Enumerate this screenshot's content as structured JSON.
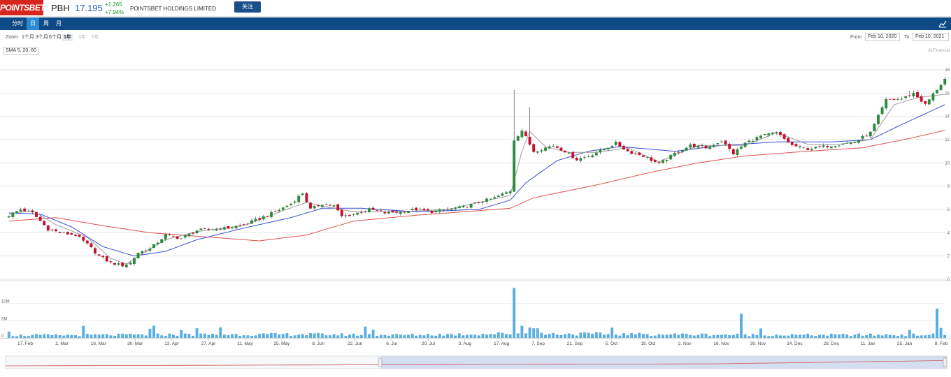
{
  "header": {
    "logo_text": "POINTSBET",
    "symbol": "PBH",
    "price": "17.195",
    "change": "+1.265",
    "change_pct": "+7.94%",
    "company_name": "POINTSBET HOLDINGS LIMITED",
    "follow_label": "关注"
  },
  "period_tabs": [
    {
      "label": "分时",
      "active": false
    },
    {
      "label": "日",
      "active": true
    },
    {
      "label": "周",
      "active": false
    },
    {
      "label": "月",
      "active": false
    }
  ],
  "zoom": {
    "label": "Zoom",
    "options": [
      {
        "label": "1个月",
        "state": "normal"
      },
      {
        "label": "3个月",
        "state": "normal"
      },
      {
        "label": "6个月",
        "state": "normal"
      },
      {
        "label": "1年",
        "state": "active"
      },
      {
        "label": "3年",
        "state": "off"
      },
      {
        "label": "5年",
        "state": "off"
      }
    ]
  },
  "range": {
    "from_label": "From",
    "from": "Feb 10, 2020",
    "to_label": "To",
    "to": "Feb 10, 2021"
  },
  "indicator_label": "SMA 5, 20, 60",
  "credit": "61Financial",
  "colors": {
    "up": "#2e8b3e",
    "down": "#c8102e",
    "sma5": "#9e9e9e",
    "sma20": "#3a4fd1",
    "sma60": "#e05050",
    "volume": "#5aaee0"
  },
  "chart_data": {
    "type": "candlestick",
    "price_axis": {
      "min": 0,
      "max": 18,
      "ticks": [
        "0",
        "2",
        "4",
        "6",
        "8",
        "10",
        "12",
        "14",
        "16",
        "18"
      ]
    },
    "volume_axis": {
      "min": 0,
      "max": 15,
      "ticks": [
        "0",
        "5M",
        "10M"
      ]
    },
    "x_ticks": [
      "17. Feb",
      "2. Mar",
      "16. Mar",
      "30. Mar",
      "13. Apr",
      "27. Apr",
      "11. May",
      "25. May",
      "8. Jun",
      "22. Jun",
      "6. Jul",
      "20. Jul",
      "3. Aug",
      "17. Aug",
      "7. Sep",
      "21. Sep",
      "5. Oct",
      "19. Oct",
      "2. Nov",
      "16. Nov",
      "30. Nov",
      "14. Dec",
      "28. Dec",
      "11. Jan",
      "25. Jan",
      "8. Feb"
    ],
    "close_anchors": [
      [
        0,
        5.5
      ],
      [
        3,
        6.0
      ],
      [
        6,
        5.7
      ],
      [
        10,
        4.3
      ],
      [
        13,
        4.0
      ],
      [
        17,
        3.8
      ],
      [
        20,
        3.0
      ],
      [
        23,
        2.0
      ],
      [
        26,
        1.4
      ],
      [
        29,
        1.2
      ],
      [
        31,
        1.4
      ],
      [
        33,
        2.3
      ],
      [
        36,
        2.6
      ],
      [
        40,
        3.8
      ],
      [
        44,
        3.5
      ],
      [
        48,
        4.2
      ],
      [
        52,
        4.3
      ],
      [
        56,
        4.4
      ],
      [
        60,
        4.7
      ],
      [
        64,
        5.2
      ],
      [
        68,
        5.8
      ],
      [
        72,
        6.5
      ],
      [
        75,
        7.4
      ],
      [
        77,
        6.0
      ],
      [
        80,
        6.5
      ],
      [
        83,
        6.3
      ],
      [
        85,
        5.4
      ],
      [
        88,
        5.6
      ],
      [
        92,
        6.0
      ],
      [
        96,
        5.7
      ],
      [
        100,
        5.8
      ],
      [
        104,
        6.0
      ],
      [
        108,
        5.8
      ],
      [
        112,
        6.0
      ],
      [
        116,
        6.2
      ],
      [
        120,
        6.6
      ],
      [
        124,
        7.0
      ],
      [
        128,
        7.6
      ],
      [
        129,
        12.0
      ],
      [
        131,
        12.8
      ],
      [
        134,
        11.0
      ],
      [
        136,
        11.2
      ],
      [
        139,
        11.5
      ],
      [
        142,
        11.0
      ],
      [
        145,
        10.3
      ],
      [
        148,
        10.6
      ],
      [
        152,
        11.2
      ],
      [
        155,
        11.7
      ],
      [
        158,
        11.0
      ],
      [
        162,
        10.6
      ],
      [
        166,
        9.9
      ],
      [
        170,
        10.8
      ],
      [
        174,
        11.5
      ],
      [
        178,
        11.3
      ],
      [
        182,
        11.9
      ],
      [
        185,
        10.8
      ],
      [
        188,
        11.7
      ],
      [
        192,
        12.3
      ],
      [
        196,
        12.6
      ],
      [
        200,
        11.5
      ],
      [
        204,
        11.2
      ],
      [
        208,
        11.4
      ],
      [
        212,
        11.6
      ],
      [
        216,
        11.8
      ],
      [
        220,
        12.6
      ],
      [
        224,
        15.4
      ],
      [
        228,
        15.5
      ],
      [
        231,
        16.0
      ],
      [
        234,
        15.0
      ],
      [
        236,
        15.9
      ],
      [
        239,
        17.2
      ]
    ],
    "sma5_anchors": [
      [
        0,
        5.6
      ],
      [
        6,
        5.9
      ],
      [
        12,
        4.7
      ],
      [
        20,
        3.6
      ],
      [
        26,
        1.8
      ],
      [
        30,
        1.3
      ],
      [
        34,
        2.2
      ],
      [
        40,
        3.4
      ],
      [
        48,
        4.1
      ],
      [
        60,
        4.6
      ],
      [
        70,
        5.9
      ],
      [
        76,
        6.6
      ],
      [
        80,
        6.3
      ],
      [
        88,
        5.8
      ],
      [
        100,
        5.8
      ],
      [
        112,
        6.0
      ],
      [
        124,
        6.9
      ],
      [
        128,
        7.2
      ],
      [
        131,
        11.0
      ],
      [
        133,
        12.7
      ],
      [
        137,
        11.4
      ],
      [
        143,
        10.9
      ],
      [
        150,
        10.9
      ],
      [
        158,
        11.3
      ],
      [
        166,
        10.1
      ],
      [
        176,
        11.5
      ],
      [
        188,
        11.5
      ],
      [
        196,
        12.6
      ],
      [
        204,
        11.6
      ],
      [
        212,
        11.6
      ],
      [
        220,
        12.0
      ],
      [
        226,
        15.0
      ],
      [
        232,
        15.6
      ],
      [
        239,
        15.9
      ]
    ],
    "sma20_anchors": [
      [
        0,
        5.7
      ],
      [
        8,
        5.6
      ],
      [
        16,
        4.5
      ],
      [
        24,
        2.8
      ],
      [
        32,
        2.0
      ],
      [
        40,
        2.4
      ],
      [
        48,
        3.4
      ],
      [
        60,
        4.4
      ],
      [
        72,
        5.3
      ],
      [
        80,
        6.1
      ],
      [
        90,
        6.1
      ],
      [
        104,
        5.8
      ],
      [
        120,
        6.0
      ],
      [
        128,
        6.8
      ],
      [
        132,
        8.3
      ],
      [
        140,
        10.2
      ],
      [
        148,
        11.0
      ],
      [
        156,
        11.4
      ],
      [
        170,
        11.0
      ],
      [
        182,
        11.5
      ],
      [
        196,
        11.8
      ],
      [
        210,
        11.8
      ],
      [
        220,
        12.0
      ],
      [
        228,
        13.3
      ],
      [
        239,
        15.0
      ]
    ],
    "sma60_anchors": [
      [
        0,
        5.0
      ],
      [
        12,
        5.3
      ],
      [
        24,
        4.6
      ],
      [
        36,
        4.0
      ],
      [
        52,
        3.6
      ],
      [
        64,
        3.3
      ],
      [
        76,
        3.8
      ],
      [
        88,
        5.0
      ],
      [
        104,
        5.5
      ],
      [
        116,
        5.8
      ],
      [
        128,
        6.1
      ],
      [
        134,
        7.0
      ],
      [
        150,
        8.1
      ],
      [
        164,
        9.2
      ],
      [
        176,
        10.0
      ],
      [
        188,
        10.6
      ],
      [
        204,
        11.0
      ],
      [
        218,
        11.3
      ],
      [
        230,
        12.1
      ],
      [
        239,
        12.8
      ]
    ],
    "volume_anchors": [
      [
        0,
        0.7
      ],
      [
        40,
        0.9
      ],
      [
        76,
        1.0
      ],
      [
        100,
        0.8
      ],
      [
        129,
        1.2
      ],
      [
        200,
        0.8
      ],
      [
        239,
        0.9
      ]
    ],
    "volume_spikes": [
      [
        129,
        14.5
      ],
      [
        131,
        3.5
      ],
      [
        133,
        3.0
      ],
      [
        134,
        2.8
      ],
      [
        135,
        2.8
      ],
      [
        187,
        7.0
      ],
      [
        230,
        2.3
      ],
      [
        237,
        8.5
      ]
    ],
    "bar_count": 240
  }
}
